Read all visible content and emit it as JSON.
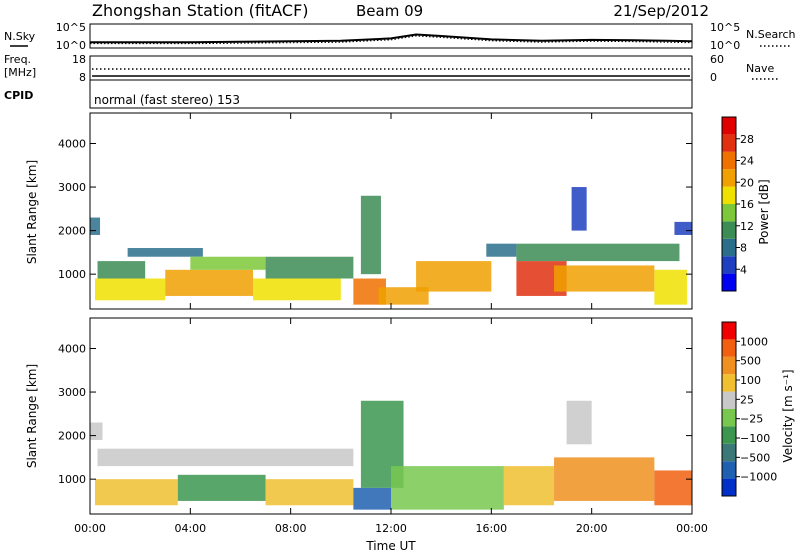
{
  "header": {
    "station": "Zhongshan Station (fitACF)",
    "beam": "Beam 09",
    "date": "21/Sep/2012"
  },
  "noise_panel": {
    "left_label": "N.Sky",
    "right_label": "N.Search",
    "ticks_left": [
      "10^5",
      "10^0"
    ],
    "ticks_right": [
      "10^5",
      "10^0"
    ]
  },
  "freq_panel": {
    "left_label_1": "Freq.",
    "left_label_2": "[MHz]",
    "right_label": "Nave",
    "ticks_left": [
      "18",
      "8"
    ],
    "ticks_right": [
      "60",
      "0"
    ]
  },
  "cpid_panel": {
    "label": "CPID",
    "mode": "normal (fast stereo) 153"
  },
  "time_axis": {
    "title": "Time UT",
    "ticks": [
      "00:00",
      "04:00",
      "08:00",
      "12:00",
      "16:00",
      "20:00",
      "00:00"
    ]
  },
  "colors": {
    "power_scale": [
      "#0000f0",
      "#1e3fbf",
      "#2b6e8c",
      "#3c8c55",
      "#7cc83a",
      "#f0e000",
      "#f0a000",
      "#f07000",
      "#e03010",
      "#e00000"
    ],
    "velocity_scale": [
      "#0030c8",
      "#2060b0",
      "#3c7878",
      "#3c9650",
      "#78c850",
      "#c8c8c8",
      "#f0c030",
      "#f09020",
      "#f06010",
      "#f00000"
    ]
  },
  "chart_data": [
    {
      "type": "heatmap",
      "name": "power",
      "xlabel": "",
      "ylabel": "Slant Range [km]",
      "xlim": [
        0,
        24
      ],
      "ylim": [
        200,
        4700
      ],
      "yticks": [
        "4000",
        "3000",
        "2000",
        "1000"
      ],
      "colorbar": {
        "title": "Power [dB]",
        "ticks": [
          "28",
          "24",
          "20",
          "16",
          "12",
          "8",
          "4"
        ],
        "range": [
          0,
          32
        ]
      },
      "bands": [
        {
          "t0": 0.0,
          "t1": 0.4,
          "r0": 1900,
          "r1": 2300,
          "v": 8
        },
        {
          "t0": 0.2,
          "t1": 3.0,
          "r0": 400,
          "r1": 900,
          "v": 18
        },
        {
          "t0": 0.3,
          "t1": 2.2,
          "r0": 900,
          "r1": 1300,
          "v": 12
        },
        {
          "t0": 1.5,
          "t1": 4.5,
          "r0": 1400,
          "r1": 1600,
          "v": 9
        },
        {
          "t0": 3.0,
          "t1": 6.5,
          "r0": 500,
          "r1": 1100,
          "v": 20
        },
        {
          "t0": 4.0,
          "t1": 7.0,
          "r0": 1100,
          "r1": 1400,
          "v": 14
        },
        {
          "t0": 6.5,
          "t1": 10.0,
          "r0": 400,
          "r1": 900,
          "v": 16
        },
        {
          "t0": 7.0,
          "t1": 10.5,
          "r0": 900,
          "r1": 1400,
          "v": 11
        },
        {
          "t0": 10.5,
          "t1": 11.8,
          "r0": 300,
          "r1": 900,
          "v": 24
        },
        {
          "t0": 10.8,
          "t1": 11.6,
          "r0": 1000,
          "r1": 2800,
          "v": 10
        },
        {
          "t0": 11.5,
          "t1": 13.5,
          "r0": 300,
          "r1": 700,
          "v": 22
        },
        {
          "t0": 13.0,
          "t1": 16.0,
          "r0": 600,
          "r1": 1300,
          "v": 22
        },
        {
          "t0": 15.8,
          "t1": 17.0,
          "r0": 1400,
          "r1": 1700,
          "v": 9
        },
        {
          "t0": 17.0,
          "t1": 19.0,
          "r0": 500,
          "r1": 1300,
          "v": 28
        },
        {
          "t0": 18.5,
          "t1": 22.5,
          "r0": 600,
          "r1": 1200,
          "v": 20
        },
        {
          "t0": 17.0,
          "t1": 23.5,
          "r0": 1300,
          "r1": 1700,
          "v": 12
        },
        {
          "t0": 19.2,
          "t1": 19.8,
          "r0": 2000,
          "r1": 3000,
          "v": 6
        },
        {
          "t0": 22.5,
          "t1": 23.8,
          "r0": 300,
          "r1": 1100,
          "v": 16
        },
        {
          "t0": 23.3,
          "t1": 24.0,
          "r0": 1900,
          "r1": 2200,
          "v": 6
        }
      ]
    },
    {
      "type": "heatmap",
      "name": "velocity",
      "xlabel": "Time UT",
      "ylabel": "Slant Range [km]",
      "xlim": [
        0,
        24
      ],
      "ylim": [
        200,
        4700
      ],
      "yticks": [
        "4000",
        "3000",
        "2000",
        "1000"
      ],
      "colorbar": {
        "title": "Velocity [m s⁻¹]",
        "ticks": [
          "1000",
          "500",
          "100",
          "25",
          "−25",
          "−100",
          "−500",
          "−1000"
        ],
        "range": [
          -1250,
          1250
        ]
      },
      "bands": [
        {
          "t0": 0.0,
          "t1": 0.5,
          "r0": 1900,
          "r1": 2300,
          "v": 0
        },
        {
          "t0": 0.3,
          "t1": 10.5,
          "r0": 1300,
          "r1": 1700,
          "v": 0
        },
        {
          "t0": 0.2,
          "t1": 3.5,
          "r0": 400,
          "r1": 1000,
          "v": 400
        },
        {
          "t0": 3.5,
          "t1": 7.0,
          "r0": 500,
          "r1": 1100,
          "v": -300
        },
        {
          "t0": 7.0,
          "t1": 10.5,
          "r0": 400,
          "r1": 1000,
          "v": 300
        },
        {
          "t0": 10.5,
          "t1": 12.0,
          "r0": 300,
          "r1": 800,
          "v": -900
        },
        {
          "t0": 10.8,
          "t1": 12.5,
          "r0": 800,
          "r1": 2800,
          "v": -300
        },
        {
          "t0": 12.0,
          "t1": 16.5,
          "r0": 300,
          "r1": 1300,
          "v": -200
        },
        {
          "t0": 16.5,
          "t1": 18.5,
          "r0": 400,
          "r1": 1300,
          "v": 300
        },
        {
          "t0": 18.5,
          "t1": 22.5,
          "r0": 500,
          "r1": 1500,
          "v": 500
        },
        {
          "t0": 19.0,
          "t1": 20.0,
          "r0": 1800,
          "r1": 2800,
          "v": 0
        },
        {
          "t0": 22.5,
          "t1": 24.0,
          "r0": 400,
          "r1": 1200,
          "v": 900
        }
      ]
    },
    {
      "type": "line",
      "name": "noise",
      "series": [
        {
          "x": [
            0,
            2,
            4,
            6,
            8,
            10,
            12,
            13,
            14,
            16,
            18,
            20,
            22,
            23,
            24
          ],
          "y": [
            1.2,
            1.2,
            1.2,
            1.3,
            1.4,
            1.5,
            2.0,
            2.8,
            2.5,
            1.8,
            1.5,
            1.7,
            1.6,
            1.5,
            1.4
          ]
        }
      ]
    }
  ]
}
